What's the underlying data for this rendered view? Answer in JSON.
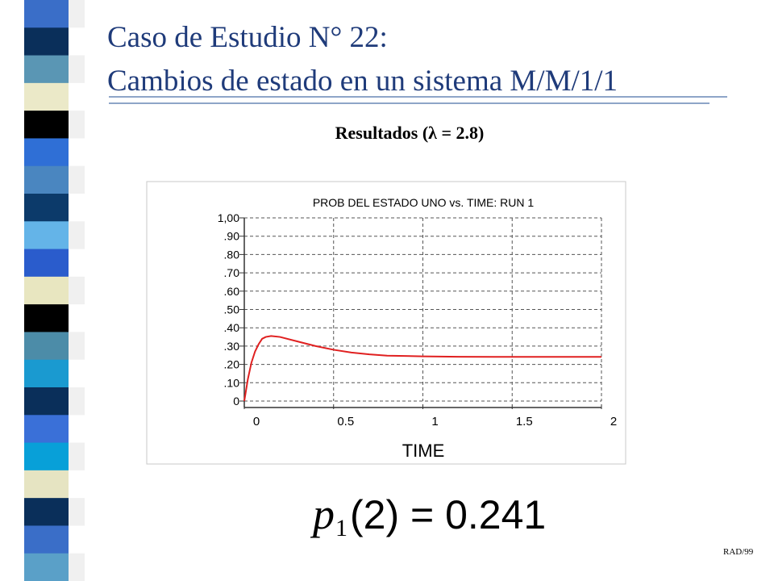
{
  "slide": {
    "title_lines": [
      "Caso de Estudio N° 22:",
      "Cambios de estado en un sistema M/M/1/1"
    ],
    "subtitle": "Resultados (λ = 2.8)",
    "formula": {
      "symbol": "p",
      "subscript": "1",
      "text": "(2) = 0.241"
    },
    "footer": "RAD/99"
  },
  "chart_data": {
    "type": "line",
    "title": "PROB DEL ESTADO UNO vs. TIME: RUN 1",
    "x_label": "TIME",
    "x": [
      0,
      0.02,
      0.04,
      0.06,
      0.08,
      0.1,
      0.12,
      0.15,
      0.2,
      0.3,
      0.4,
      0.5,
      0.6,
      0.7,
      0.8,
      1.0,
      1.2,
      1.4,
      1.6,
      1.8,
      2.0
    ],
    "series": [
      {
        "color": "#e02020",
        "values": [
          0,
          0.12,
          0.21,
          0.27,
          0.31,
          0.34,
          0.35,
          0.355,
          0.35,
          0.325,
          0.3,
          0.28,
          0.265,
          0.255,
          0.248,
          0.244,
          0.242,
          0.241,
          0.241,
          0.241,
          0.241
        ]
      }
    ],
    "xlim": [
      0,
      2
    ],
    "xticks": [
      0,
      0.5,
      1,
      1.5,
      2
    ],
    "ylim": [
      0,
      1
    ],
    "yticks": [
      0,
      {
        "value": 0.1,
        "label": ".10"
      },
      {
        "value": 0.2,
        "label": ".20"
      },
      {
        "value": 0.3,
        "label": ".30"
      },
      {
        "value": 0.4,
        "label": ".40"
      },
      {
        "value": 0.5,
        "label": ".50"
      },
      {
        "value": 0.6,
        "label": ".60"
      },
      {
        "value": 0.7,
        "label": ".70"
      },
      {
        "value": 0.8,
        "label": ".80"
      },
      {
        "value": 0.9,
        "label": ".90"
      },
      {
        "value": 1,
        "label": "1,00"
      }
    ],
    "grid": true
  }
}
